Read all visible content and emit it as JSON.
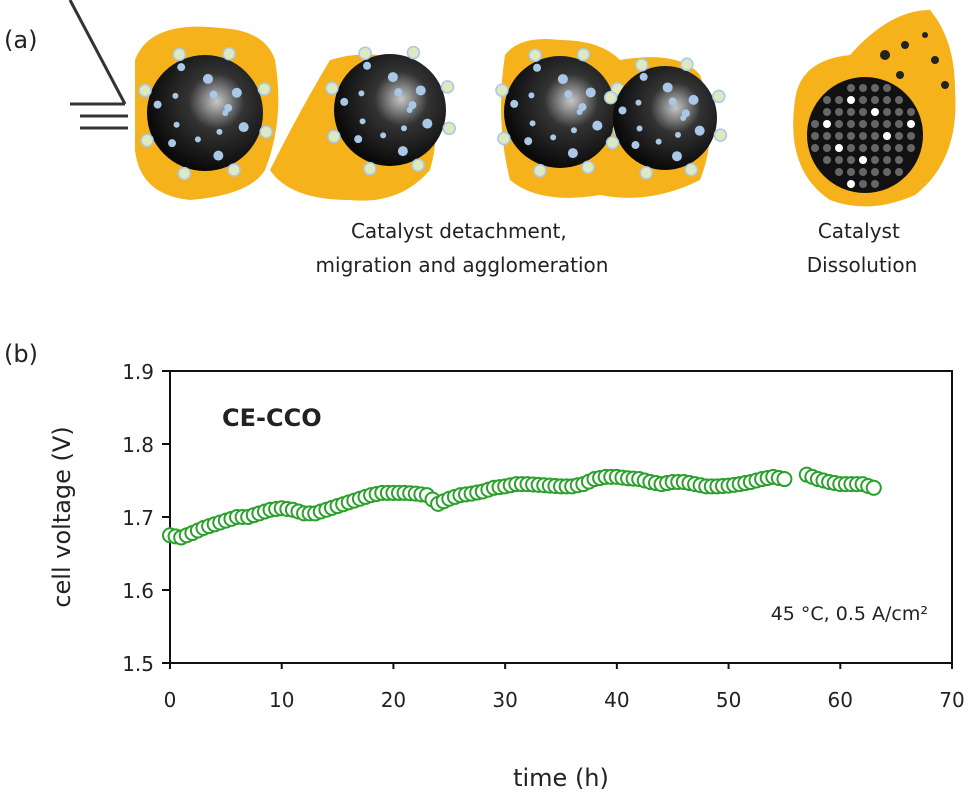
{
  "panel_a": {
    "label": "(a)",
    "caption_1": [
      "Catalyst detachment,",
      "migration and agglomeration"
    ],
    "caption_2": [
      "Catalyst",
      "Dissolution"
    ],
    "colors": {
      "ionomer": "#f5b21a",
      "particle": "#111111",
      "catalyst": "#a9c8e8"
    }
  },
  "panel_b": {
    "label": "(b)"
  },
  "chart_data": {
    "type": "scatter",
    "title": "",
    "annotation": "CE-CCO",
    "condition": "45 °C, 0.5 A/cm²",
    "xlabel": "time (h)",
    "ylabel": "cell voltage (V)",
    "xlim": [
      0,
      70
    ],
    "ylim": [
      1.5,
      1.9
    ],
    "xticks": [
      "0",
      "10",
      "20",
      "30",
      "40",
      "50",
      "60",
      "70"
    ],
    "yticks": [
      "1.5",
      "1.6",
      "1.7",
      "1.8",
      "1.9"
    ],
    "grid": false,
    "marker": "open-circle",
    "color": "#2ca02c",
    "x": [
      0,
      1,
      2,
      3,
      4,
      5,
      6,
      7,
      8,
      9,
      10,
      11,
      12,
      13,
      14,
      15,
      16,
      17,
      18,
      19,
      20,
      21,
      22,
      23,
      24,
      25,
      26,
      27,
      28,
      29,
      30,
      31,
      32,
      33,
      34,
      35,
      36,
      37,
      38,
      39,
      40,
      41,
      42,
      43,
      44,
      45,
      46,
      47,
      48,
      49,
      50,
      51,
      52,
      53,
      54,
      55,
      57,
      58,
      59,
      60,
      61,
      62,
      63
    ],
    "y": [
      1.675,
      1.672,
      1.678,
      1.685,
      1.69,
      1.695,
      1.7,
      1.7,
      1.705,
      1.71,
      1.712,
      1.71,
      1.705,
      1.705,
      1.71,
      1.715,
      1.72,
      1.725,
      1.73,
      1.733,
      1.733,
      1.733,
      1.732,
      1.73,
      1.718,
      1.725,
      1.73,
      1.732,
      1.735,
      1.74,
      1.742,
      1.745,
      1.745,
      1.744,
      1.743,
      1.742,
      1.742,
      1.745,
      1.752,
      1.755,
      1.755,
      1.753,
      1.752,
      1.748,
      1.745,
      1.748,
      1.748,
      1.745,
      1.742,
      1.742,
      1.743,
      1.745,
      1.748,
      1.752,
      1.755,
      1.752,
      1.758,
      1.752,
      1.748,
      1.745,
      1.745,
      1.745,
      1.74
    ]
  }
}
